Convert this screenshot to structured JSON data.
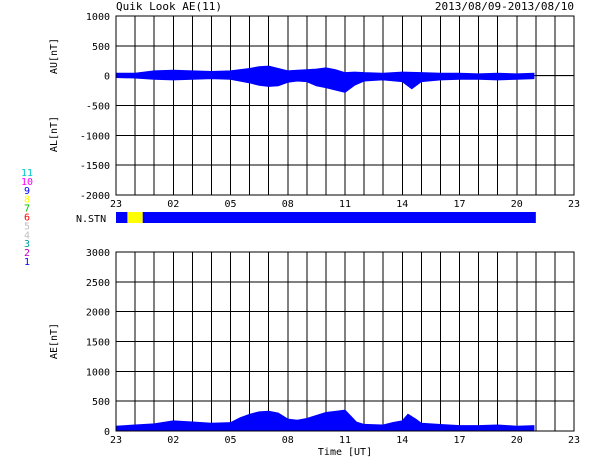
{
  "header": {
    "title": "Quik Look AE(11)",
    "date_range": "2013/08/09-2013/08/10"
  },
  "colors": {
    "trace": "#0000ff",
    "station_bar": "#0000ff",
    "station_highlight": "#ffff00",
    "axis": "#000000",
    "grid": "#000000"
  },
  "station_legend": {
    "label": "N.STN",
    "numbers": [
      {
        "text": "11",
        "color": "#00c8c8"
      },
      {
        "text": "10",
        "color": "#ff00ff"
      },
      {
        "text": "9",
        "color": "#0000ff"
      },
      {
        "text": "8",
        "color": "#ffff00"
      },
      {
        "text": "7",
        "color": "#00c000"
      },
      {
        "text": "6",
        "color": "#ff0000"
      },
      {
        "text": "5",
        "color": "#c0c0c0"
      },
      {
        "text": "4",
        "color": "#c0c0c0"
      },
      {
        "text": "3",
        "color": "#00a0a0"
      },
      {
        "text": "2",
        "color": "#c000c0"
      },
      {
        "text": "1",
        "color": "#0000ff"
      }
    ],
    "coverage": [
      {
        "start": 23.0,
        "end": 23.6,
        "station_count": 9
      },
      {
        "start": 23.6,
        "end": 24.4,
        "station_count": 8
      },
      {
        "start": 24.4,
        "end": 45.0,
        "station_count": 9
      }
    ]
  },
  "chart_data": [
    {
      "type": "area",
      "panel": "AU/AL",
      "ylabel_top": "AU[nT]",
      "ylabel_bottom": "AL[nT]",
      "xtick_labels": [
        "23",
        "02",
        "05",
        "08",
        "11",
        "14",
        "17",
        "20",
        "23"
      ],
      "xtick_values": [
        23,
        26,
        29,
        32,
        35,
        38,
        41,
        44,
        47
      ],
      "xlim": [
        23,
        47
      ],
      "ylim": [
        -2000,
        1000
      ],
      "ytick_values": [
        -2000,
        -1500,
        -1000,
        -500,
        0,
        500,
        1000
      ],
      "grid": true,
      "data_end": 44.9,
      "series": [
        {
          "id": "AU",
          "x": [
            23.0,
            24.0,
            25.0,
            26.0,
            27.0,
            28.0,
            29.0,
            30.0,
            30.5,
            31.0,
            31.5,
            32.0,
            32.5,
            33.0,
            33.5,
            34.0,
            34.5,
            35.0,
            35.5,
            36.0,
            37.0,
            38.0,
            39.0,
            40.0,
            41.0,
            42.0,
            43.0,
            44.0,
            44.9
          ],
          "y": [
            40,
            40,
            80,
            90,
            80,
            70,
            80,
            120,
            150,
            160,
            120,
            80,
            90,
            100,
            110,
            130,
            100,
            50,
            60,
            50,
            40,
            60,
            50,
            40,
            40,
            30,
            40,
            30,
            40
          ]
        },
        {
          "id": "AL",
          "x": [
            23.0,
            24.0,
            25.0,
            26.0,
            27.0,
            28.0,
            29.0,
            30.0,
            30.5,
            31.0,
            31.5,
            32.0,
            32.5,
            33.0,
            33.5,
            34.0,
            34.5,
            35.0,
            35.5,
            36.0,
            37.0,
            38.0,
            38.5,
            39.0,
            40.0,
            41.0,
            42.0,
            43.0,
            44.0,
            44.9
          ],
          "y": [
            -30,
            -40,
            -60,
            -70,
            -60,
            -50,
            -60,
            -120,
            -160,
            -180,
            -170,
            -110,
            -90,
            -100,
            -170,
            -200,
            -240,
            -280,
            -160,
            -90,
            -70,
            -100,
            -220,
            -100,
            -70,
            -60,
            -60,
            -70,
            -60,
            -50
          ]
        }
      ]
    },
    {
      "type": "area",
      "panel": "AE",
      "ylabel": "AE[nT]",
      "xlabel": "Time [UT]",
      "xtick_labels": [
        "23",
        "02",
        "05",
        "08",
        "11",
        "14",
        "17",
        "20",
        "23"
      ],
      "xtick_values": [
        23,
        26,
        29,
        32,
        35,
        38,
        41,
        44,
        47
      ],
      "xlim": [
        23,
        47
      ],
      "ylim": [
        0,
        3000
      ],
      "ytick_values": [
        0,
        500,
        1000,
        1500,
        2000,
        2500,
        3000
      ],
      "grid": true,
      "data_end": 44.9,
      "series": [
        {
          "id": "AE",
          "x": [
            23.0,
            24.0,
            25.0,
            26.0,
            27.0,
            28.0,
            29.0,
            29.5,
            30.0,
            30.5,
            31.0,
            31.5,
            32.0,
            32.5,
            33.0,
            33.5,
            34.0,
            34.5,
            35.0,
            35.3,
            35.6,
            36.0,
            37.0,
            37.5,
            38.0,
            38.3,
            38.7,
            39.0,
            40.0,
            41.0,
            42.0,
            43.0,
            44.0,
            44.9
          ],
          "y": [
            80,
            100,
            120,
            170,
            150,
            130,
            140,
            220,
            280,
            320,
            330,
            300,
            200,
            180,
            210,
            260,
            310,
            330,
            350,
            250,
            150,
            110,
            100,
            140,
            170,
            280,
            200,
            130,
            110,
            90,
            90,
            100,
            80,
            90
          ]
        }
      ]
    }
  ]
}
